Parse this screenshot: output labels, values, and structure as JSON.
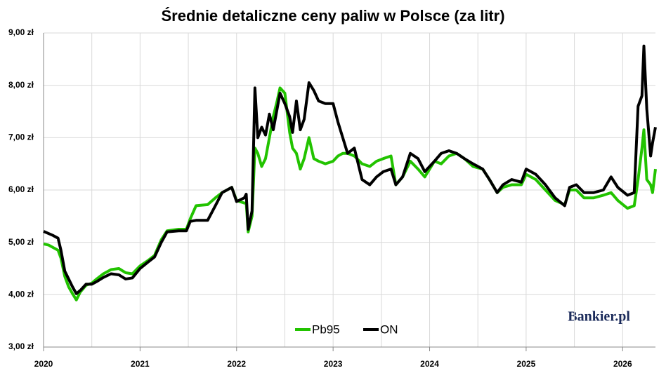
{
  "chart_data": {
    "type": "line",
    "title": "Średnie detaliczne ceny paliw w Polsce (za litr)",
    "watermark": "Bankier.pl",
    "xlim": [
      2020,
      2026.34
    ],
    "xticks": [
      2020,
      2021,
      2022,
      2023,
      2024,
      2025,
      2026
    ],
    "x_minor_grid": [
      2020.5,
      2021.5,
      2022.5,
      2023.5,
      2024.5,
      2025.5
    ],
    "ylim": [
      3,
      9
    ],
    "yticks": [
      {
        "value": 3,
        "label": "3,00 zł"
      },
      {
        "value": 4,
        "label": "4,00 zł"
      },
      {
        "value": 5,
        "label": "5,00 zł"
      },
      {
        "value": 6,
        "label": "6,00 zł"
      },
      {
        "value": 7,
        "label": "7,00 zł"
      },
      {
        "value": 8,
        "label": "8,00 zł"
      },
      {
        "value": 9,
        "label": "9,00 zł"
      }
    ],
    "grid": true,
    "legend": "bottom",
    "x": [
      2020.0,
      2020.05,
      2020.1,
      2020.15,
      2020.18,
      2020.22,
      2020.26,
      2020.3,
      2020.34,
      2020.38,
      2020.44,
      2020.5,
      2020.55,
      2020.62,
      2020.7,
      2020.78,
      2020.85,
      2020.92,
      2021.0,
      2021.08,
      2021.15,
      2021.22,
      2021.28,
      2021.4,
      2021.48,
      2021.52,
      2021.58,
      2021.7,
      2021.78,
      2021.85,
      2021.95,
      2022.0,
      2022.08,
      2022.1,
      2022.12,
      2022.16,
      2022.19,
      2022.22,
      2022.26,
      2022.3,
      2022.34,
      2022.38,
      2022.42,
      2022.45,
      2022.5,
      2022.55,
      2022.58,
      2022.62,
      2022.66,
      2022.7,
      2022.75,
      2022.8,
      2022.85,
      2022.92,
      2023.0,
      2023.05,
      2023.1,
      2023.15,
      2023.22,
      2023.3,
      2023.38,
      2023.45,
      2023.52,
      2023.6,
      2023.65,
      2023.72,
      2023.8,
      2023.88,
      2023.95,
      2024.05,
      2024.12,
      2024.2,
      2024.28,
      2024.36,
      2024.45,
      2024.55,
      2024.62,
      2024.7,
      2024.76,
      2024.85,
      2024.95,
      2025.0,
      2025.1,
      2025.2,
      2025.3,
      2025.4,
      2025.45,
      2025.52,
      2025.6,
      2025.7,
      2025.8,
      2025.88,
      2025.95,
      2026.05,
      2026.12,
      2026.16,
      2026.2,
      2026.22,
      2026.25,
      2026.29,
      2026.31,
      2026.34
    ],
    "series": [
      {
        "name": "Pb95",
        "color": "#22c300",
        "values": [
          4.97,
          4.95,
          4.9,
          4.85,
          4.7,
          4.35,
          4.15,
          4.02,
          3.9,
          4.05,
          4.18,
          4.22,
          4.3,
          4.4,
          4.48,
          4.5,
          4.42,
          4.4,
          4.55,
          4.65,
          4.75,
          5.05,
          5.22,
          5.25,
          5.25,
          5.45,
          5.7,
          5.72,
          5.85,
          5.95,
          6.05,
          5.8,
          5.75,
          5.75,
          5.2,
          5.5,
          6.8,
          6.7,
          6.45,
          6.6,
          7.0,
          7.4,
          7.7,
          7.95,
          7.85,
          7.1,
          6.8,
          6.7,
          6.4,
          6.6,
          7.0,
          6.6,
          6.55,
          6.5,
          6.55,
          6.65,
          6.7,
          6.7,
          6.65,
          6.5,
          6.45,
          6.55,
          6.6,
          6.65,
          6.1,
          6.25,
          6.55,
          6.4,
          6.25,
          6.55,
          6.5,
          6.65,
          6.7,
          6.6,
          6.45,
          6.4,
          6.2,
          5.95,
          6.05,
          6.1,
          6.1,
          6.3,
          6.2,
          6.0,
          5.8,
          5.72,
          6.0,
          6.0,
          5.85,
          5.85,
          5.9,
          5.95,
          5.8,
          5.65,
          5.7,
          6.2,
          6.8,
          7.15,
          6.2,
          6.1,
          5.95,
          6.4
        ]
      },
      {
        "name": "ON",
        "color": "#000000",
        "values": [
          5.21,
          5.17,
          5.13,
          5.08,
          4.85,
          4.45,
          4.3,
          4.15,
          4.02,
          4.08,
          4.2,
          4.2,
          4.25,
          4.33,
          4.4,
          4.38,
          4.3,
          4.32,
          4.5,
          4.62,
          4.72,
          5.0,
          5.2,
          5.22,
          5.22,
          5.4,
          5.42,
          5.42,
          5.7,
          5.95,
          6.05,
          5.78,
          5.85,
          5.92,
          5.25,
          5.6,
          7.95,
          7.0,
          7.2,
          7.05,
          7.45,
          7.15,
          7.55,
          7.85,
          7.65,
          7.4,
          7.1,
          7.7,
          7.15,
          7.35,
          8.05,
          7.9,
          7.7,
          7.65,
          7.65,
          7.3,
          7.0,
          6.7,
          6.8,
          6.2,
          6.1,
          6.25,
          6.35,
          6.4,
          6.1,
          6.25,
          6.7,
          6.6,
          6.35,
          6.55,
          6.7,
          6.75,
          6.7,
          6.6,
          6.5,
          6.4,
          6.2,
          5.95,
          6.1,
          6.2,
          6.15,
          6.4,
          6.3,
          6.1,
          5.85,
          5.7,
          6.05,
          6.1,
          5.95,
          5.95,
          6.0,
          6.25,
          6.05,
          5.9,
          5.95,
          7.6,
          7.8,
          8.75,
          7.55,
          6.65,
          6.9,
          7.2
        ]
      }
    ]
  }
}
